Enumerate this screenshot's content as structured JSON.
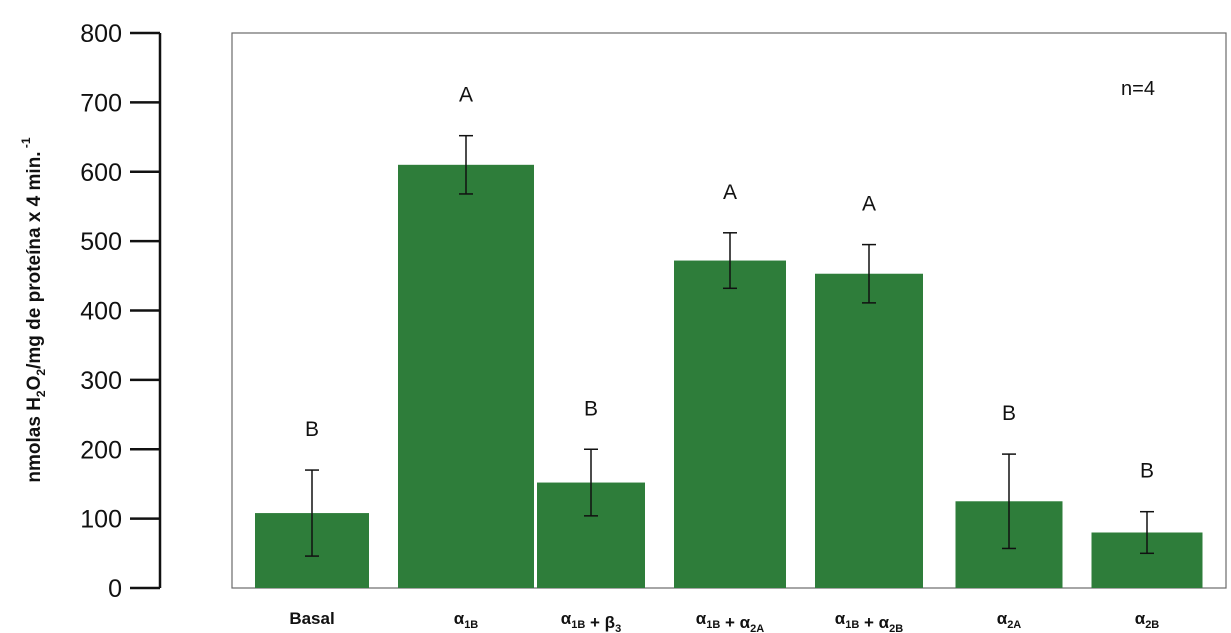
{
  "chart_data": {
    "type": "bar",
    "ylabel": {
      "part1": "nmolas",
      "part2": "H",
      "sub1": "2",
      "part3": "O",
      "sub2": "2",
      "part4": "/mg de  proteína  x 4 min.",
      "sup": "-1"
    },
    "annotation": "n=4",
    "ylim": [
      0,
      800
    ],
    "yticks": [
      0,
      100,
      200,
      300,
      400,
      500,
      600,
      700,
      800
    ],
    "grid": false,
    "categories": [
      {
        "parts": [
          {
            "t": "Basal",
            "sub": ""
          }
        ]
      },
      {
        "parts": [
          {
            "t": "α",
            "sub": "1B"
          }
        ]
      },
      {
        "parts": [
          {
            "t": "α",
            "sub": "1B"
          },
          {
            "t": " + β",
            "sub": "3"
          }
        ]
      },
      {
        "parts": [
          {
            "t": "α",
            "sub": "1B"
          },
          {
            "t": " + α",
            "sub": "2A"
          }
        ]
      },
      {
        "parts": [
          {
            "t": "α",
            "sub": "1B"
          },
          {
            "t": " + α",
            "sub": "2B"
          }
        ]
      },
      {
        "parts": [
          {
            "t": "α",
            "sub": "2A"
          }
        ]
      },
      {
        "parts": [
          {
            "t": "α",
            "sub": "2B"
          }
        ]
      }
    ],
    "values": [
      108,
      610,
      152,
      472,
      453,
      125,
      80
    ],
    "errors": [
      62,
      42,
      48,
      40,
      42,
      68,
      30
    ],
    "significance": [
      "B",
      "A",
      "B",
      "A",
      "A",
      "B",
      "B"
    ],
    "bar_color": "#2e7d3a"
  }
}
